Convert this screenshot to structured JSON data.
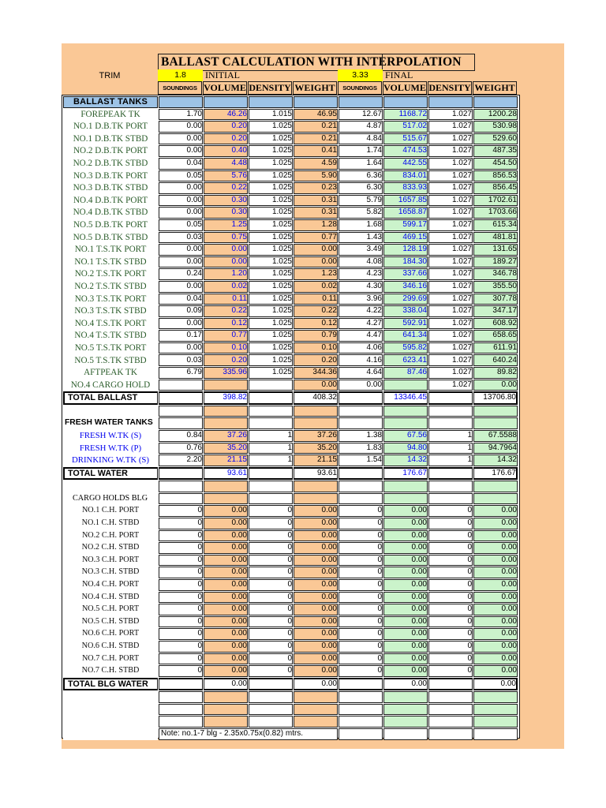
{
  "title": "BALLAST CALCULATION WITH INTERPOLATION",
  "trim": {
    "label": "TRIM",
    "initial_value": "1.8",
    "initial_label": "INITIAL",
    "final_value": "3.33",
    "final_label": "FINAL"
  },
  "columns": [
    "SOUNDINGS",
    "VOLUME",
    "DENSITY",
    "WEIGHT",
    "SOUNDINGS",
    "VOLUME",
    "DENSITY",
    "WEIGHT"
  ],
  "colors": {
    "sheet_background": "#FAC896",
    "initial_fill": "#FAC896",
    "final_fill": "#CBF3CB",
    "section_header_fill": "#9DC3E6",
    "trim_fill": "#FFFF00",
    "volume_text": "#0000F0",
    "tank_label_text": "#2A5C2A",
    "fresh_label_text": "#0000EE"
  },
  "note": "Note: no.1-7 blg - 2.35x0.75x(0.82) mtrs.",
  "rows": [
    {
      "type": "section",
      "label": "BALLAST TANKS",
      "cells": [
        "",
        "",
        "",
        "",
        "",
        "",
        "",
        ""
      ]
    },
    {
      "type": "tank",
      "volBlue": true,
      "label": "FOREPEAK TK",
      "cells": [
        "1.70",
        "46.26",
        "1.015",
        "46.95",
        "12.67",
        "1168.72",
        "1.027",
        "1200.28"
      ]
    },
    {
      "type": "tank",
      "volBlue": true,
      "label": "NO.1 D.B.TK PORT",
      "cells": [
        "0.00",
        "0.20",
        "1.025",
        "0.21",
        "4.87",
        "517.02",
        "1.027",
        "530.98"
      ]
    },
    {
      "type": "tank",
      "volBlue": true,
      "label": "NO.1 D.B.TK STBD",
      "cells": [
        "0.00",
        "0.20",
        "1.025",
        "0.21",
        "4.84",
        "515.67",
        "1.027",
        "529.60"
      ]
    },
    {
      "type": "tank",
      "volBlue": true,
      "label": "NO.2 D.B.TK PORT",
      "cells": [
        "0.00",
        "0.40",
        "1.025",
        "0.41",
        "1.74",
        "474.53",
        "1.027",
        "487.35"
      ]
    },
    {
      "type": "tank",
      "volBlue": true,
      "label": "NO.2 D.B.TK STBD",
      "cells": [
        "0.04",
        "4.48",
        "1.025",
        "4.59",
        "1.64",
        "442.55",
        "1.027",
        "454.50"
      ]
    },
    {
      "type": "tank",
      "volBlue": true,
      "label": "NO.3 D.B.TK PORT",
      "cells": [
        "0.05",
        "5.76",
        "1.025",
        "5.90",
        "6.36",
        "834.01",
        "1.027",
        "856.53"
      ]
    },
    {
      "type": "tank",
      "volBlue": true,
      "label": "NO.3 D.B.TK STBD",
      "cells": [
        "0.00",
        "0.22",
        "1.025",
        "0.23",
        "6.30",
        "833.93",
        "1.027",
        "856.45"
      ]
    },
    {
      "type": "tank",
      "volBlue": true,
      "label": "NO.4 D.B.TK PORT",
      "cells": [
        "0.00",
        "0.30",
        "1.025",
        "0.31",
        "5.79",
        "1657.85",
        "1.027",
        "1702.61"
      ]
    },
    {
      "type": "tank",
      "volBlue": true,
      "label": "NO.4 D.B.TK STBD",
      "cells": [
        "0.00",
        "0.30",
        "1.025",
        "0.31",
        "5.82",
        "1658.87",
        "1.027",
        "1703.66"
      ]
    },
    {
      "type": "tank",
      "volBlue": true,
      "label": "NO.5 D.B.TK PORT",
      "cells": [
        "0.05",
        "1.25",
        "1.025",
        "1.28",
        "1.68",
        "599.17",
        "1.027",
        "615.34"
      ]
    },
    {
      "type": "tank",
      "volBlue": true,
      "label": "NO.5 D.B.TK STBD",
      "cells": [
        "0.03",
        "0.75",
        "1.025",
        "0.77",
        "1.43",
        "469.15",
        "1.027",
        "481.81"
      ]
    },
    {
      "type": "tank",
      "volBlue": true,
      "label": "NO.1 T.S.TK PORT",
      "cells": [
        "0.00",
        "0.00",
        "1.025",
        "0.00",
        "3.49",
        "128.19",
        "1.027",
        "131.65"
      ]
    },
    {
      "type": "tank",
      "volBlue": true,
      "label": "NO.1 T.S.TK STBD",
      "cells": [
        "0.00",
        "0.00",
        "1.025",
        "0.00",
        "4.08",
        "184.30",
        "1.027",
        "189.27"
      ]
    },
    {
      "type": "tank",
      "volBlue": true,
      "label": "NO.2 T.S.TK PORT",
      "cells": [
        "0.24",
        "1.20",
        "1.025",
        "1.23",
        "4.23",
        "337.66",
        "1.027",
        "346.78"
      ]
    },
    {
      "type": "tank",
      "volBlue": true,
      "label": "NO.2 T.S.TK STBD",
      "cells": [
        "0.00",
        "0.02",
        "1.025",
        "0.02",
        "4.30",
        "346.16",
        "1.027",
        "355.50"
      ]
    },
    {
      "type": "tank",
      "volBlue": true,
      "label": "NO.3 T.S.TK PORT",
      "cells": [
        "0.04",
        "0.11",
        "1.025",
        "0.11",
        "3.96",
        "299.69",
        "1.027",
        "307.78"
      ]
    },
    {
      "type": "tank",
      "volBlue": true,
      "label": "NO.3 T.S.TK STBD",
      "cells": [
        "0.09",
        "0.22",
        "1.025",
        "0.22",
        "4.22",
        "338.04",
        "1.027",
        "347.17"
      ]
    },
    {
      "type": "tank",
      "volBlue": true,
      "label": "NO.4 T.S.TK PORT",
      "cells": [
        "0.00",
        "0.12",
        "1.025",
        "0.12",
        "4.27",
        "592.91",
        "1.027",
        "608.92"
      ]
    },
    {
      "type": "tank",
      "volBlue": true,
      "label": "NO.4 T.S.TK STBD",
      "cells": [
        "0.17",
        "0.77",
        "1.025",
        "0.79",
        "4.47",
        "641.34",
        "1.027",
        "658.65"
      ]
    },
    {
      "type": "tank",
      "volBlue": true,
      "label": "NO.5 T.S.TK PORT",
      "cells": [
        "0.00",
        "0.10",
        "1.025",
        "0.10",
        "4.06",
        "595.82",
        "1.027",
        "611.91"
      ]
    },
    {
      "type": "tank",
      "volBlue": true,
      "label": "NO.5 T.S.TK STBD",
      "cells": [
        "0.03",
        "0.20",
        "1.025",
        "0.20",
        "4.16",
        "623.41",
        "1.027",
        "640.24"
      ]
    },
    {
      "type": "tank",
      "volBlue": true,
      "label": "AFTPEAK TK",
      "cells": [
        "6.79",
        "335.96",
        "1.025",
        "344.36",
        "4.64",
        "87.46",
        "1.027",
        "89.82"
      ]
    },
    {
      "type": "tank",
      "volBlue": true,
      "label": "NO.4 CARGO HOLD",
      "cells": [
        "",
        "",
        "",
        "0.00",
        "0.00",
        "",
        "1.027",
        "0.00"
      ]
    },
    {
      "type": "total",
      "volBlue": true,
      "label": "TOTAL BALLAST",
      "cells": [
        "",
        "398.82",
        "",
        "408.32",
        "",
        "13346.45",
        "",
        "13706.80"
      ]
    },
    {
      "type": "blank",
      "label": "",
      "cells": [
        "",
        "",
        "",
        "",
        "",
        "",
        "",
        ""
      ]
    },
    {
      "type": "label-bold",
      "label": "FRESH WATER TANKS",
      "cells": [
        "",
        "",
        "",
        "",
        "",
        "",
        "",
        ""
      ]
    },
    {
      "type": "fresh",
      "volBlue": true,
      "label": "FRESH W.TK (S)",
      "cells": [
        "0.84",
        "37.26",
        "1",
        "37.26",
        "1.38",
        "67.56",
        "1",
        "67.5588"
      ]
    },
    {
      "type": "fresh",
      "volBlue": true,
      "label": "FRESH W.TK (P)",
      "cells": [
        "0.76",
        "35.20",
        "1",
        "35.20",
        "1.83",
        "94.80",
        "1",
        "94.7964"
      ]
    },
    {
      "type": "fresh",
      "volBlue": true,
      "label": "DRINKING W.TK (S)",
      "cells": [
        "2.20",
        "21.15",
        "1",
        "21.15",
        "1.54",
        "14.32",
        "1",
        "14.32"
      ]
    },
    {
      "type": "total",
      "volBlue": true,
      "label": "TOTAL WATER",
      "cells": [
        "",
        "93.61",
        "",
        "93.61",
        "",
        "176.67",
        "",
        "176.67"
      ]
    },
    {
      "type": "blank",
      "label": "",
      "cells": [
        "",
        "",
        "",
        "",
        "",
        "",
        "",
        ""
      ]
    },
    {
      "type": "label-serif",
      "label": "CARGO HOLDS BLG",
      "cells": [
        "",
        "",
        "",
        "",
        "",
        "",
        "",
        ""
      ]
    },
    {
      "type": "ch",
      "label": "NO.1 C.H. PORT",
      "cells": [
        "0",
        "0.00",
        "0",
        "0.00",
        "0",
        "0.00",
        "0",
        "0.00"
      ]
    },
    {
      "type": "ch",
      "label": "NO.1 C.H. STBD",
      "cells": [
        "0",
        "0.00",
        "0",
        "0.00",
        "0",
        "0.00",
        "0",
        "0.00"
      ]
    },
    {
      "type": "ch",
      "label": "NO.2 C.H. PORT",
      "cells": [
        "0",
        "0.00",
        "0",
        "0.00",
        "0",
        "0.00",
        "0",
        "0.00"
      ]
    },
    {
      "type": "ch",
      "label": "NO.2 C.H. STBD",
      "cells": [
        "0",
        "0.00",
        "0",
        "0.00",
        "0",
        "0.00",
        "0",
        "0.00"
      ]
    },
    {
      "type": "ch",
      "label": "NO.3 C.H. PORT",
      "cells": [
        "0",
        "0.00",
        "0",
        "0.00",
        "0",
        "0.00",
        "0",
        "0.00"
      ]
    },
    {
      "type": "ch",
      "label": "NO.3 C.H. STBD",
      "cells": [
        "0",
        "0.00",
        "0",
        "0.00",
        "0",
        "0.00",
        "0",
        "0.00"
      ]
    },
    {
      "type": "ch",
      "label": "NO.4 C.H. PORT",
      "cells": [
        "0",
        "0.00",
        "0",
        "0.00",
        "0",
        "0.00",
        "0",
        "0.00"
      ]
    },
    {
      "type": "ch",
      "label": "NO.4 C.H. STBD",
      "cells": [
        "0",
        "0.00",
        "0",
        "0.00",
        "0",
        "0.00",
        "0",
        "0.00"
      ]
    },
    {
      "type": "ch",
      "label": "NO.5 C.H. PORT",
      "cells": [
        "0",
        "0.00",
        "0",
        "0.00",
        "0",
        "0.00",
        "0",
        "0.00"
      ]
    },
    {
      "type": "ch",
      "label": "NO.5 C.H. STBD",
      "cells": [
        "0",
        "0.00",
        "0",
        "0.00",
        "0",
        "0.00",
        "0",
        "0.00"
      ]
    },
    {
      "type": "ch",
      "label": "NO.6 C.H. PORT",
      "cells": [
        "0",
        "0.00",
        "0",
        "0.00",
        "0",
        "0.00",
        "0",
        "0.00"
      ]
    },
    {
      "type": "ch",
      "label": "NO.6 C.H. STBD",
      "cells": [
        "0",
        "0.00",
        "0",
        "0.00",
        "0",
        "0.00",
        "0",
        "0.00"
      ]
    },
    {
      "type": "ch",
      "label": "NO.7 C.H. PORT",
      "cells": [
        "0",
        "0.00",
        "0",
        "0.00",
        "0",
        "0.00",
        "0",
        "0.00"
      ]
    },
    {
      "type": "ch",
      "label": "NO.7 C.H. STBD",
      "cells": [
        "0",
        "0.00",
        "0",
        "0.00",
        "0",
        "0.00",
        "0",
        "0.00"
      ]
    },
    {
      "type": "total",
      "label": "TOTAL BLG WATER",
      "cells": [
        "",
        "0.00",
        "",
        "0.00",
        "",
        "0.00",
        "",
        "0.00"
      ]
    },
    {
      "type": "blank",
      "label": "",
      "cells": [
        "",
        "",
        "",
        "",
        "",
        "",
        "",
        ""
      ]
    },
    {
      "type": "blank",
      "label": "",
      "cells": [
        "",
        "",
        "",
        "",
        "",
        "",
        "",
        ""
      ]
    },
    {
      "type": "blank",
      "label": "",
      "cells": [
        "",
        "",
        "",
        "",
        "",
        "",
        "",
        ""
      ]
    },
    {
      "type": "note",
      "label": "",
      "cells": [
        "",
        "",
        "",
        "",
        ""
      ]
    }
  ]
}
